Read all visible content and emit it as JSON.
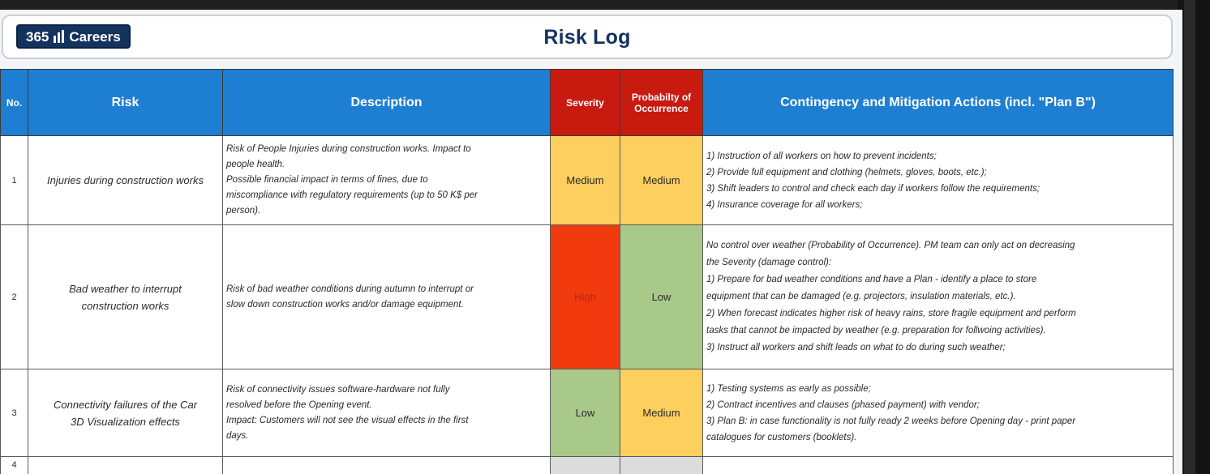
{
  "logo": {
    "number": "365",
    "word": "Careers"
  },
  "page_title": "Risk Log",
  "columns": {
    "no": "No.",
    "risk": "Risk",
    "description": "Description",
    "severity": "Severity",
    "probability": [
      "Probabilty of",
      "Occurrence"
    ],
    "mitigation": "Contingency and Mitigation Actions (incl. \"Plan B\")"
  },
  "rows": [
    {
      "no": "1",
      "risk": [
        "Injuries during construction works"
      ],
      "description": [
        "Risk of People Injuries during construction works. Impact to",
        "people health.",
        "Possible financial impact in terms of fines, due to",
        "miscompliance with regulatory requirements (up to 50 K$ per",
        "person)."
      ],
      "severity": "Medium",
      "probability": "Medium",
      "mitigation": [
        "1) Instruction of all workers on how to prevent incidents;",
        "2) Provide full equipment and clothing (helmets, gloves, boots, etc.);",
        "3) Shift leaders to control and check each day if workers follow the requirements;",
        "4) Insurance coverage for all workers;"
      ]
    },
    {
      "no": "2",
      "risk": [
        "Bad weather to interrupt",
        "construction works"
      ],
      "description": [
        "Risk of bad weather conditions during autumn to interrupt or",
        "slow down construction works and/or damage equipment."
      ],
      "severity": "High",
      "probability": "Low",
      "mitigation": [
        "No control over weather (Probability of Occurrence). PM team can only act on decreasing",
        "the Severity (damage control):",
        "1) Prepare for bad weather conditions and have a Plan - identify a place to store",
        "equipment that can be damaged (e.g. projectors, insulation materials, etc.).",
        "2) When forecast indicates higher risk of heavy rains, store fragile equipment and perform",
        "tasks that cannot be impacted by weather (e.g. preparation for follwoing activities).",
        "3) Instruct all workers and shift leads on what to do during such weather;"
      ]
    },
    {
      "no": "3",
      "risk": [
        "Connectivity failures of the Car",
        "3D Visualization effects"
      ],
      "description": [
        "Risk of connectivity issues software-hardware not fully",
        "resolved before the Opening event.",
        "Impact: Customers will not see the visual effects in the first",
        "days."
      ],
      "severity": "Low",
      "probability": "Medium",
      "mitigation": [
        "1) Testing systems as early as possible;",
        "2) Contract incentives and clauses (phased payment) with vendor;",
        "3) Plan B: in case functionality is not fully ready 2 weeks before Opening day - print paper",
        "catalogues for customers (booklets)."
      ]
    },
    {
      "no": "4"
    }
  ],
  "colors": {
    "header_blue": "#1e7fd2",
    "header_red": "#c91a10",
    "medium": "#fdcf5e",
    "high": "#f13a0e",
    "low": "#a9c98a",
    "logo_navy": "#13335f"
  }
}
